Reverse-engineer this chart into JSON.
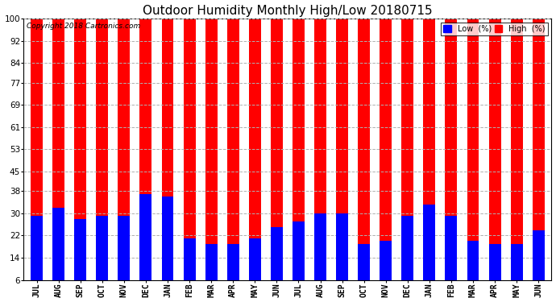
{
  "title": "Outdoor Humidity Monthly High/Low 20180715",
  "copyright": "Copyright 2018 Cartronics.com",
  "categories": [
    "JUL",
    "AUG",
    "SEP",
    "OCT",
    "NOV",
    "DEC",
    "JAN",
    "FEB",
    "MAR",
    "APR",
    "MAY",
    "JUN",
    "JUL",
    "AUG",
    "SEP",
    "OCT",
    "NOV",
    "DEC",
    "JAN",
    "FEB",
    "MAR",
    "APR",
    "MAY",
    "JUN"
  ],
  "high_values": [
    100,
    100,
    100,
    100,
    100,
    100,
    100,
    100,
    100,
    100,
    100,
    100,
    100,
    100,
    100,
    100,
    100,
    100,
    100,
    100,
    100,
    100,
    100,
    100
  ],
  "low_values": [
    29,
    32,
    28,
    29,
    29,
    37,
    36,
    21,
    19,
    19,
    21,
    25,
    27,
    30,
    30,
    19,
    20,
    29,
    33,
    29,
    20,
    19,
    19,
    24
  ],
  "high_color": "#ff0000",
  "low_color": "#0000ff",
  "bg_color": "#ffffff",
  "grid_color": "#b0b0b0",
  "yticks": [
    6,
    14,
    22,
    30,
    38,
    45,
    53,
    61,
    69,
    77,
    84,
    92,
    100
  ],
  "ylim": [
    6,
    100
  ],
  "bar_width": 0.55,
  "legend_low_label": "Low  (%)",
  "legend_high_label": "High  (%)",
  "figwidth": 6.9,
  "figheight": 3.75,
  "dpi": 100
}
